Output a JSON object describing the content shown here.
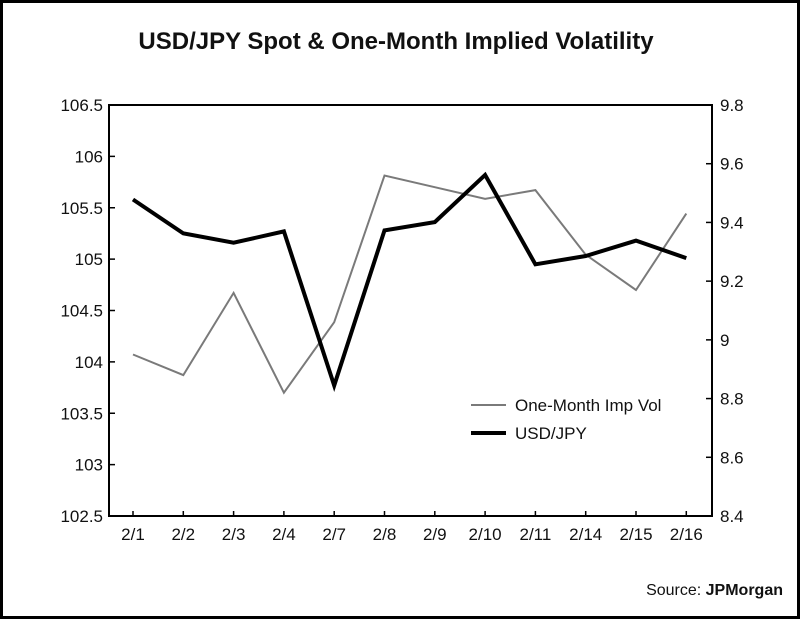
{
  "chart_data": {
    "type": "line",
    "title": "USD/JPY Spot & One-Month Implied Volatility",
    "categories": [
      "2/1",
      "2/2",
      "2/3",
      "2/4",
      "2/7",
      "2/8",
      "2/9",
      "2/10",
      "2/11",
      "2/14",
      "2/15",
      "2/16"
    ],
    "left_axis": {
      "ylim": [
        102.5,
        106.5
      ],
      "ticks": [
        "106.5",
        "106",
        "105.5",
        "105",
        "104.5",
        "104",
        "103.5",
        "103",
        "102.5"
      ]
    },
    "right_axis": {
      "ylim": [
        8.4,
        9.8
      ],
      "ticks": [
        "9.8",
        "9.6",
        "9.4",
        "9.2",
        "9",
        "8.8",
        "8.6",
        "8.4"
      ]
    },
    "series": [
      {
        "name": "One-Month Imp Vol",
        "axis": "right",
        "color": "#7a7a7a",
        "values": [
          8.95,
          8.88,
          9.16,
          8.82,
          9.06,
          9.56,
          9.52,
          9.48,
          9.51,
          9.29,
          9.17,
          9.43
        ]
      },
      {
        "name": "USD/JPY",
        "axis": "left",
        "color": "#000000",
        "values": [
          105.58,
          105.25,
          105.16,
          105.27,
          103.77,
          105.28,
          105.36,
          105.82,
          104.95,
          105.03,
          105.18,
          105.01
        ]
      }
    ],
    "legend": {
      "position": "lower-right"
    },
    "grid": false
  },
  "source": {
    "label": "Source:",
    "org": "JPMorgan"
  }
}
